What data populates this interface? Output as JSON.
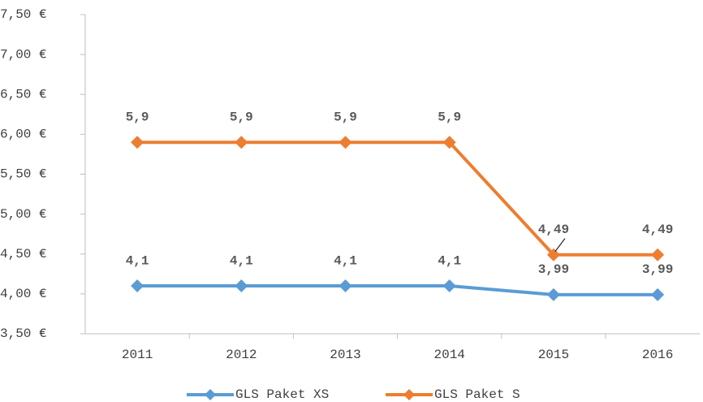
{
  "chart_data": {
    "type": "line",
    "categories": [
      "2011",
      "2012",
      "2013",
      "2014",
      "2015",
      "2016"
    ],
    "series": [
      {
        "name": "GLS Paket XS",
        "color": "#5b9bd5",
        "values": [
          4.1,
          4.1,
          4.1,
          4.1,
          3.99,
          3.99
        ],
        "value_labels": [
          "4,1",
          "4,1",
          "4,1",
          "4,1",
          "3,99",
          "3,99"
        ]
      },
      {
        "name": "GLS Paket S",
        "color": "#ed7d31",
        "values": [
          5.9,
          5.9,
          5.9,
          5.9,
          4.49,
          4.49
        ],
        "value_labels": [
          "5,9",
          "5,9",
          "5,9",
          "5,9",
          "4,49",
          "4,49"
        ]
      }
    ],
    "ylim": [
      3.5,
      7.5
    ],
    "yticks": [
      {
        "value": 3.5,
        "label": "3,50 €"
      },
      {
        "value": 4.0,
        "label": "4,00 €"
      },
      {
        "value": 4.5,
        "label": "4,50 €"
      },
      {
        "value": 5.0,
        "label": "5,00 €"
      },
      {
        "value": 5.5,
        "label": "5,50 €"
      },
      {
        "value": 6.0,
        "label": "6,00 €"
      },
      {
        "value": 6.5,
        "label": "6,50 €"
      },
      {
        "value": 7.0,
        "label": "7,00 €"
      },
      {
        "value": 7.5,
        "label": "7,50 €"
      }
    ],
    "legend": "bottom"
  }
}
